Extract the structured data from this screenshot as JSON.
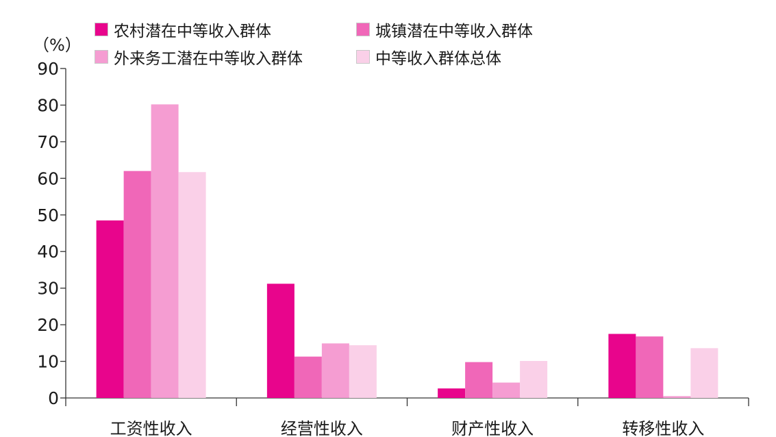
{
  "chart_data": {
    "type": "bar",
    "unit_label": "（%）",
    "categories": [
      "工资性收入",
      "经营性收入",
      "财产性收入",
      "转移性收入"
    ],
    "series": [
      {
        "name": "农村潜在中等收入群体",
        "color": "#e8058c",
        "values": [
          48.5,
          31.2,
          2.6,
          17.5
        ]
      },
      {
        "name": "城镇潜在中等收入群体",
        "color": "#f067b8",
        "values": [
          62.0,
          11.3,
          9.8,
          16.8
        ]
      },
      {
        "name": "外来务工潜在中等收入群体",
        "color": "#f59dd2",
        "values": [
          80.2,
          14.9,
          4.2,
          0.5
        ]
      },
      {
        "name": "中等收入群体总体",
        "color": "#fad0e8",
        "values": [
          61.7,
          14.4,
          10.1,
          13.6
        ]
      }
    ],
    "ylim": [
      0,
      90
    ],
    "yticks": [
      0,
      10,
      20,
      30,
      40,
      50,
      60,
      70,
      80,
      90
    ],
    "legend_position": "top-left",
    "grid": false
  }
}
